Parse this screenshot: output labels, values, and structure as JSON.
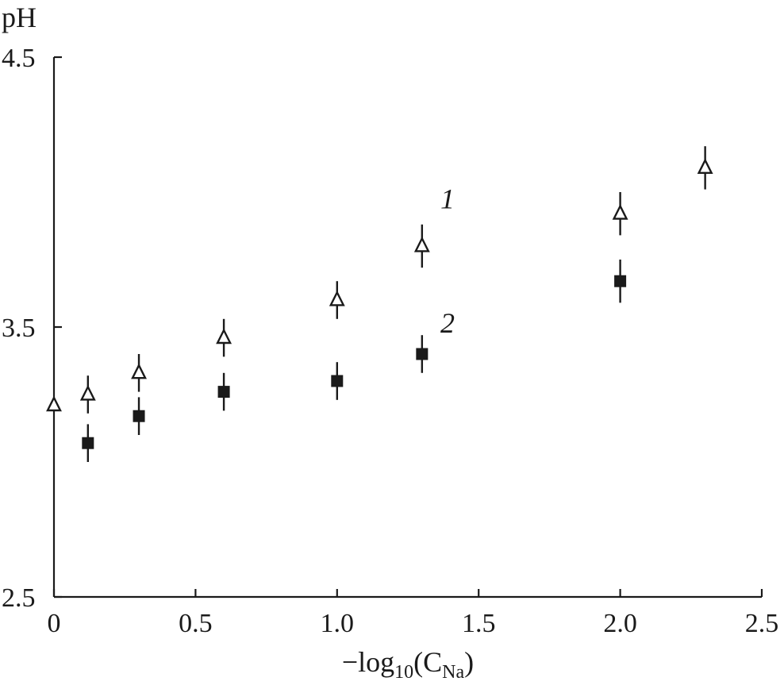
{
  "chart_data": {
    "type": "scatter",
    "xlabel": {
      "main": "−log",
      "sub": "10",
      "paren_open": "(C",
      "sub2": "Na",
      "paren_close": ")"
    },
    "ylabel": "pH",
    "xlim": [
      0,
      2.5
    ],
    "ylim": [
      2.5,
      4.5
    ],
    "x_ticks": [
      0,
      0.5,
      1.0,
      1.5,
      2.0,
      2.5
    ],
    "x_tick_labels": [
      "0",
      "0.5",
      "1.0",
      "1.5",
      "2.0",
      "2.5"
    ],
    "y_ticks": [
      2.5,
      3.5,
      4.5
    ],
    "y_tick_labels": [
      "2.5",
      "3.5",
      "4.5"
    ],
    "grid": false,
    "series": [
      {
        "name": "1",
        "marker": "open-triangle",
        "x": [
          0.0,
          0.12,
          0.3,
          0.6,
          1.0,
          1.3,
          2.0,
          2.3
        ],
        "y": [
          3.21,
          3.25,
          3.33,
          3.46,
          3.6,
          3.8,
          3.92,
          4.09
        ],
        "err": [
          0.0,
          0.07,
          0.07,
          0.07,
          0.07,
          0.08,
          0.08,
          0.08
        ]
      },
      {
        "name": "2",
        "marker": "filled-square",
        "x": [
          0.12,
          0.3,
          0.6,
          1.0,
          1.3,
          2.0
        ],
        "y": [
          3.07,
          3.17,
          3.26,
          3.3,
          3.4,
          3.67
        ],
        "err": [
          0.07,
          0.07,
          0.07,
          0.07,
          0.07,
          0.08
        ]
      }
    ],
    "annotations": [
      {
        "text": "1",
        "x": 1.39,
        "y": 3.94
      },
      {
        "text": "2",
        "x": 1.39,
        "y": 3.48
      }
    ]
  }
}
